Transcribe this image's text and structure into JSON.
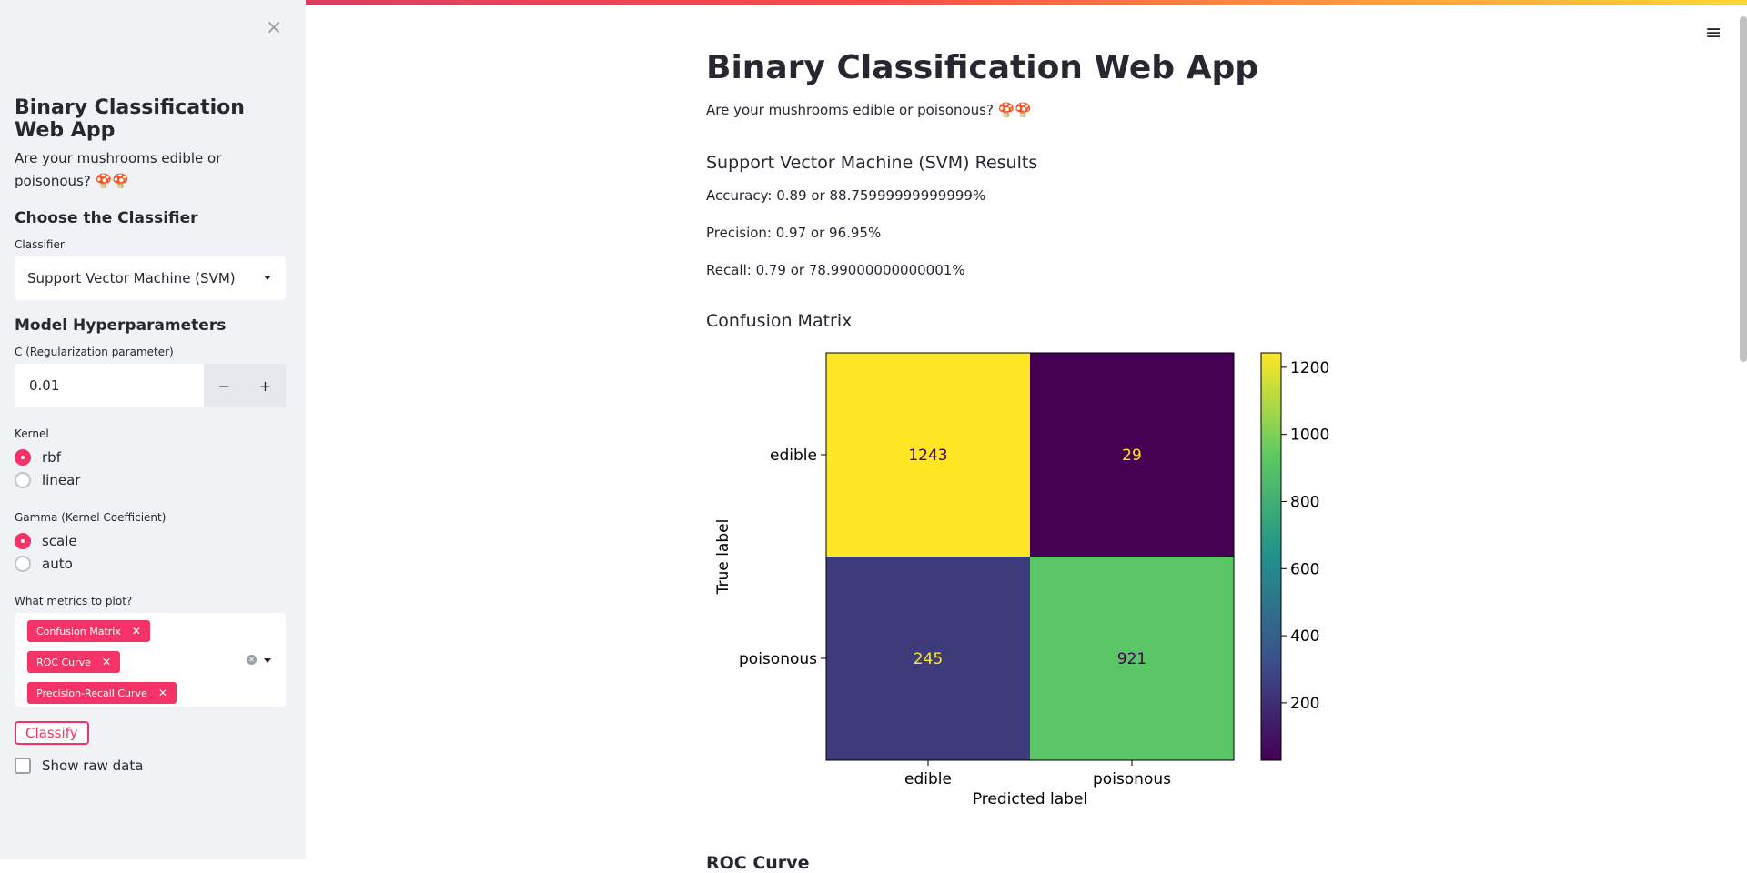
{
  "sidebar": {
    "close_icon": "×",
    "title": "Binary Classification Web App",
    "subtitle": "Are your mushrooms edible or poisonous? 🍄🍄",
    "choose_heading": "Choose the Classifier",
    "classifier_label": "Classifier",
    "classifier_value": "Support Vector Machine (SVM)",
    "hyper_heading": "Model Hyperparameters",
    "c_label": "C (Regularization parameter)",
    "c_value": "0.01",
    "minus": "−",
    "plus": "+",
    "kernel_label": "Kernel",
    "kernel_options": [
      "rbf",
      "linear"
    ],
    "kernel_selected": "rbf",
    "gamma_label": "Gamma (Kernel Coefficient)",
    "gamma_options": [
      "scale",
      "auto"
    ],
    "gamma_selected": "scale",
    "metrics_label": "What metrics to plot?",
    "metrics_tags": [
      "Confusion Matrix",
      "ROC Curve",
      "Precision-Recall Curve"
    ],
    "tag_remove": "✕",
    "classify_button": "Classify",
    "show_raw_label": "Show raw data"
  },
  "main": {
    "title": "Binary Classification Web App",
    "subtitle": "Are your mushrooms edible or poisonous? 🍄🍄",
    "results_heading": "Support Vector Machine (SVM) Results",
    "accuracy": "Accuracy: 0.89 or 88.75999999999999%",
    "precision": "Precision: 0.97 or 96.95%",
    "recall": "Recall: 0.79 or 78.99000000000001%",
    "cm_heading": "Confusion Matrix",
    "next_heading_partial": "ROC Curve"
  },
  "menu_icon": "≡",
  "colors": {
    "accent": "#f63366",
    "sidebar_bg": "#f0f2f6",
    "text": "#262730"
  },
  "chart_data": {
    "type": "heatmap",
    "title": "",
    "xlabel": "Predicted label",
    "ylabel": "True label",
    "x_categories": [
      "edible",
      "poisonous"
    ],
    "y_categories": [
      "edible",
      "poisonous"
    ],
    "values": [
      [
        1243,
        29
      ],
      [
        245,
        921
      ]
    ],
    "colormap": "viridis",
    "colorbar_ticks": [
      200,
      400,
      600,
      800,
      1000,
      1200
    ],
    "colorbar_range": [
      29,
      1243
    ]
  }
}
